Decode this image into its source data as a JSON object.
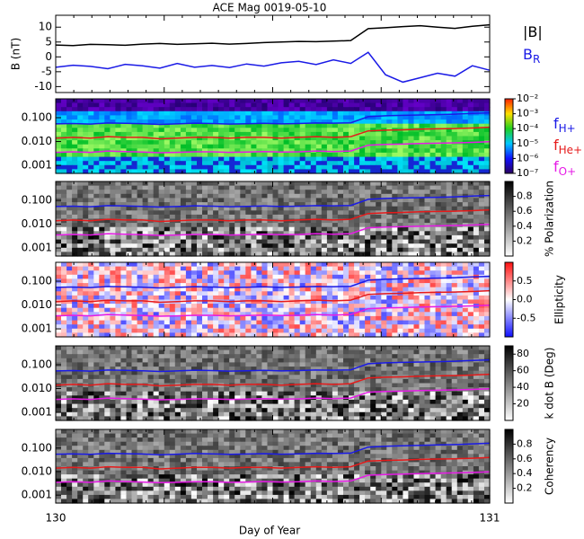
{
  "chart_data": [
    {
      "type": "line",
      "title": "ACE Mag 0019-05-10",
      "ylabel": "B (nT)",
      "x": [
        130,
        130.04,
        130.08,
        130.12,
        130.16,
        130.2,
        130.24,
        130.28,
        130.32,
        130.36,
        130.4,
        130.44,
        130.48,
        130.52,
        130.56,
        130.6,
        130.64,
        130.68,
        130.72,
        130.76,
        130.8,
        130.84,
        130.88,
        130.92,
        130.96,
        131
      ],
      "series": [
        {
          "name": "|B|",
          "color": "#000000",
          "values": [
            4.0,
            3.8,
            4.2,
            4.1,
            3.9,
            4.3,
            4.5,
            4.2,
            4.4,
            4.6,
            4.3,
            4.5,
            4.8,
            5.0,
            5.2,
            5.1,
            5.3,
            5.5,
            9.5,
            9.8,
            10.2,
            10.5,
            10.0,
            9.6,
            10.3,
            10.8
          ]
        },
        {
          "name": "B",
          "subscript": "R",
          "color": "#1a1ae6",
          "values": [
            -3.5,
            -2.8,
            -3.2,
            -4.0,
            -2.5,
            -3.0,
            -3.8,
            -2.2,
            -3.5,
            -2.9,
            -3.6,
            -2.4,
            -3.1,
            -2.0,
            -1.5,
            -2.6,
            -1.0,
            -2.2,
            1.5,
            -6.0,
            -8.5,
            -7.0,
            -5.5,
            -6.5,
            -3.0,
            -4.5
          ]
        }
      ],
      "xlim": [
        130,
        131
      ],
      "ylim": [
        -12,
        14
      ],
      "yticks": [
        10,
        5,
        0,
        -5,
        -10
      ]
    },
    {
      "type": "spectrogram",
      "xlabel": "Day of Year",
      "log_y": true,
      "x": [
        130,
        130.04,
        130.08,
        130.12,
        130.16,
        130.2,
        130.24,
        130.28,
        130.32,
        130.36,
        130.4,
        130.44,
        130.48,
        130.52,
        130.56,
        130.6,
        130.64,
        130.68,
        130.72,
        130.76,
        130.8,
        130.84,
        130.88,
        130.92,
        130.96,
        131
      ],
      "series": [
        {
          "name": "f",
          "subscript": "H+",
          "color": "#1a1ae6",
          "values": [
            0.055,
            0.057,
            0.054,
            0.06,
            0.058,
            0.056,
            0.052,
            0.055,
            0.059,
            0.057,
            0.054,
            0.056,
            0.058,
            0.055,
            0.057,
            0.06,
            0.059,
            0.061,
            0.11,
            0.12,
            0.125,
            0.13,
            0.135,
            0.14,
            0.15,
            0.16
          ]
        },
        {
          "name": "f",
          "subscript": "He+",
          "color": "#e61a1a",
          "values": [
            0.014,
            0.015,
            0.014,
            0.016,
            0.015,
            0.015,
            0.013,
            0.014,
            0.015,
            0.015,
            0.014,
            0.015,
            0.015,
            0.014,
            0.015,
            0.016,
            0.015,
            0.016,
            0.028,
            0.03,
            0.031,
            0.033,
            0.034,
            0.035,
            0.037,
            0.04
          ]
        },
        {
          "name": "f",
          "subscript": "O+",
          "color": "#e61ae6",
          "values": [
            0.0035,
            0.0037,
            0.0035,
            0.004,
            0.0038,
            0.0036,
            0.0034,
            0.0035,
            0.0037,
            0.0037,
            0.0035,
            0.0036,
            0.0038,
            0.0036,
            0.0037,
            0.004,
            0.0038,
            0.004,
            0.007,
            0.0075,
            0.0078,
            0.0082,
            0.0085,
            0.0088,
            0.0092,
            0.0098
          ]
        }
      ],
      "xlim": [
        130,
        131
      ],
      "xticks": [
        130,
        131
      ],
      "ylim": [
        0.00046,
        0.62
      ],
      "yticks": [
        {
          "value": 0.1,
          "label": "0.100"
        },
        {
          "value": 0.01,
          "label": "0.010"
        },
        {
          "value": 0.001,
          "label": "0.001"
        }
      ],
      "panels": [
        {
          "colormap": "rainbow",
          "zlog": true,
          "zlim": [
            1e-07,
            0.01
          ],
          "zticks": [
            {
              "value": 0.01,
              "label": "10⁻²"
            },
            {
              "value": 0.001,
              "label": "10⁻³"
            },
            {
              "value": 0.0001,
              "label": "10⁻⁴"
            },
            {
              "value": 1e-05,
              "label": "10⁻⁵"
            },
            {
              "value": 1e-06,
              "label": "10⁻⁶"
            },
            {
              "value": 1e-07,
              "label": "10⁻⁷"
            }
          ]
        },
        {
          "colormap": "gray",
          "zlabel": "% Polarization",
          "zlim": [
            0,
            1
          ],
          "zticks": [
            0.8,
            0.6,
            0.4,
            0.2
          ]
        },
        {
          "colormap": "redblue",
          "zlabel": "Ellipticity",
          "zlim": [
            -1,
            1
          ],
          "zticks": [
            0.5,
            {
              "value": 0,
              "label": "0.0"
            },
            -0.5
          ]
        },
        {
          "colormap": "gray",
          "zlabel": "k dot B (Deg)",
          "zlim": [
            0,
            90
          ],
          "zticks": [
            80,
            60,
            40,
            20
          ]
        },
        {
          "colormap": "gray",
          "zlabel": "Coherency",
          "zlim": [
            0,
            1
          ],
          "zticks": [
            0.8,
            0.6,
            0.4,
            0.2
          ]
        }
      ]
    }
  ]
}
